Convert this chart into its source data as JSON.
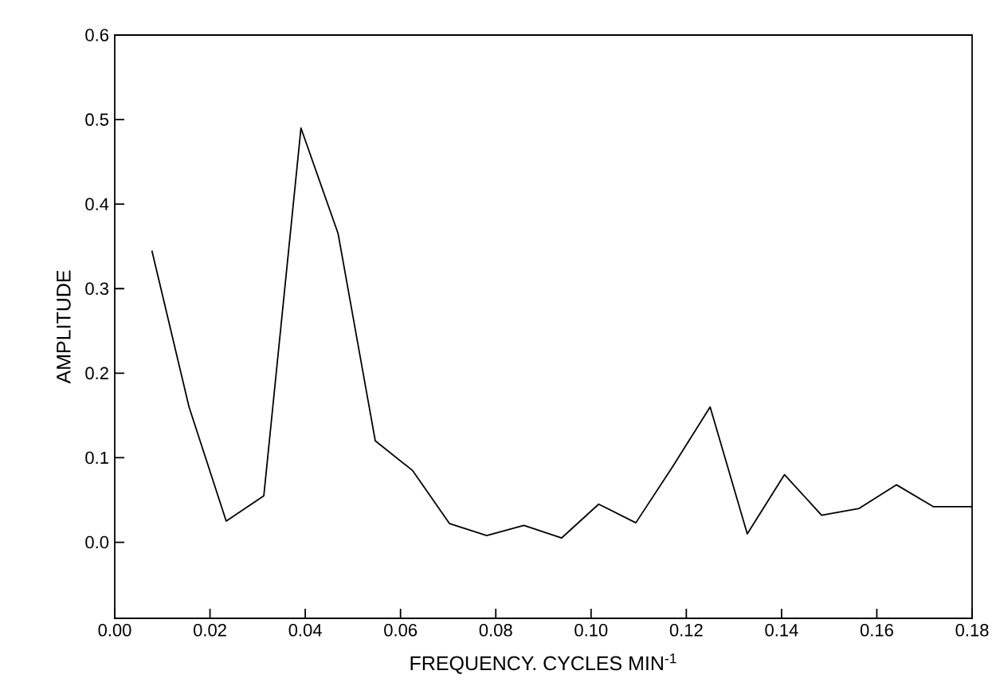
{
  "chart_data": {
    "type": "line",
    "xlabel": "FREQUENCY. CYCLES MIN$^{-1}$",
    "ylabel": "AMPLITUDE",
    "x": [
      0.0078,
      0.0156,
      0.0234,
      0.0313,
      0.0391,
      0.0469,
      0.0547,
      0.0625,
      0.0703,
      0.0781,
      0.0859,
      0.0938,
      0.1016,
      0.1094,
      0.1172,
      0.125,
      0.1328,
      0.1406,
      0.1484,
      0.1563,
      0.1641,
      0.1719,
      0.18
    ],
    "series": [
      {
        "color": "#000000",
        "values": [
          0.345,
          0.16,
          0.025,
          0.055,
          0.49,
          0.365,
          0.12,
          0.085,
          0.022,
          0.008,
          0.02,
          0.005,
          0.045,
          0.023,
          0.09,
          0.16,
          0.01,
          0.08,
          0.032,
          0.04,
          0.068,
          0.042,
          0.042
        ]
      }
    ],
    "xlim": [
      0,
      0.18
    ],
    "ylim": [
      -0.09,
      0.6
    ],
    "xticks": [
      {
        "value": 0,
        "label": "0.00"
      },
      {
        "value": 0.02,
        "label": "0.02"
      },
      {
        "value": 0.04,
        "label": "0.04"
      },
      {
        "value": 0.06,
        "label": "0.06"
      },
      {
        "value": 0.08,
        "label": "0.08"
      },
      {
        "value": 0.1,
        "label": "0.10"
      },
      {
        "value": 0.12,
        "label": "0.12"
      },
      {
        "value": 0.14,
        "label": "0.14"
      },
      {
        "value": 0.16,
        "label": "0.16"
      },
      {
        "value": 0.18,
        "label": "0.18"
      }
    ],
    "yticks": [
      {
        "value": 0,
        "label": "0.0"
      },
      0.1,
      0.2,
      0.3,
      0.4,
      0.5,
      0.6
    ]
  }
}
